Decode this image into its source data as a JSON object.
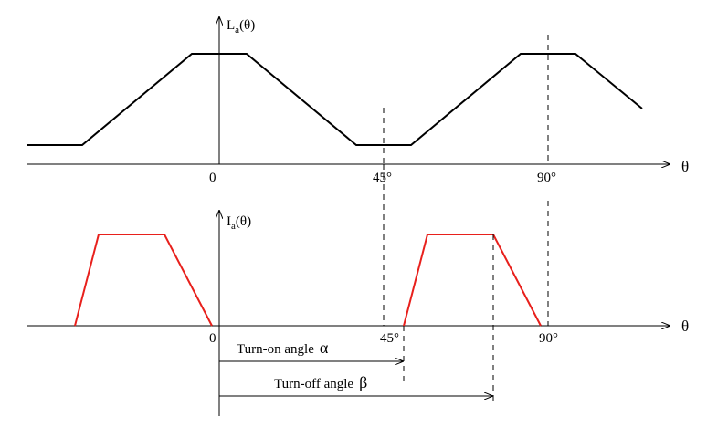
{
  "colors": {
    "inductance": "#000000",
    "current": "#e8201c",
    "axes": "#000000"
  },
  "top_plot": {
    "ylabel_base": "L",
    "ylabel_sub": "a",
    "ylabel_arg": "(θ)",
    "xlabel": "θ",
    "ticks": [
      "0",
      "45°",
      "90°"
    ]
  },
  "bottom_plot": {
    "ylabel_base": "I",
    "ylabel_sub": "a",
    "ylabel_arg": "(θ)",
    "xlabel": "θ",
    "ticks": [
      "0",
      "45°",
      "90°"
    ]
  },
  "annotations": {
    "turn_on": {
      "text": "Turn-on angle",
      "symbol": "α"
    },
    "turn_off": {
      "text": "Turn-off angle",
      "symbol": "β"
    }
  }
}
